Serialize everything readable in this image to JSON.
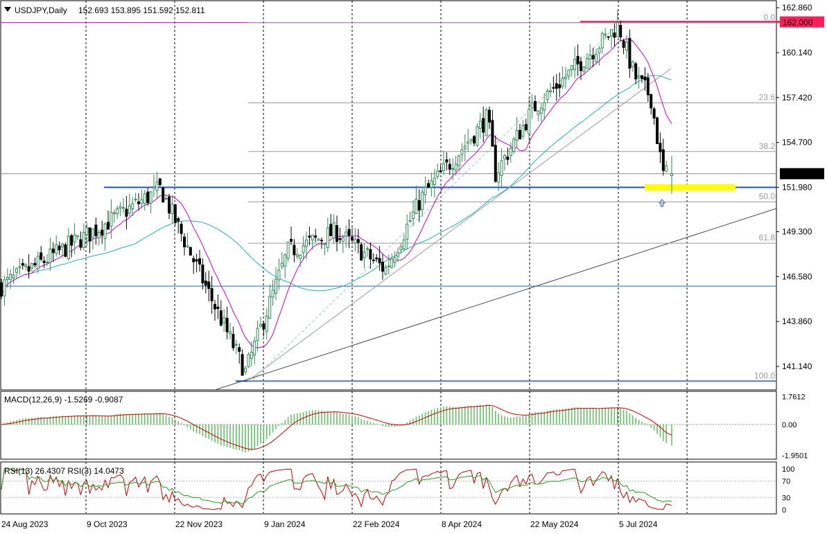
{
  "colors": {
    "background": "#ffffff",
    "bull_candle": "#2e8b57",
    "bear_candle": "#000000",
    "sma50": "#cc00cc",
    "sma200": "#20b2aa",
    "support_line": "#1f4fd1",
    "resistance_line": "#ff1f5a",
    "highlight_zone": "#ffff00",
    "macd_hist": "#5cbf5c",
    "macd_signal": "#cc0000",
    "rsi13": "#cc0000",
    "rsi3": "#20a020",
    "fib_text": "#9a9a9a",
    "grid": "#000000"
  },
  "header": {
    "symbol_label": "USDJPY,Daily",
    "ohlc": "152.693 153.895 151.592 152.811"
  },
  "chart_data": [
    {
      "type": "candlestick",
      "title": "USDJPY,Daily",
      "ohlc_last": {
        "open": 152.693,
        "high": 153.895,
        "low": 151.592,
        "close": 152.811
      },
      "ylim": [
        139.8,
        163.2
      ],
      "y_ticks": [
        162.86,
        160.14,
        157.42,
        154.7,
        151.98,
        149.3,
        146.58,
        143.86,
        141.14
      ],
      "y_tick_labels": [
        "162.860",
        "160.140",
        "157.420",
        "154.700",
        "151.980",
        "149.300",
        "146.580",
        "143.860",
        "141.140"
      ],
      "x_tick_labels": [
        "24 Aug 2023",
        "9 Oct 2023",
        "22 Nov 2023",
        "9 Jan 2024",
        "22 Feb 2024",
        "8 Apr 2024",
        "22 May 2024",
        "5 Jul 2024"
      ],
      "current_price_label": "152.811",
      "resistance_label": "162.000",
      "key_points": [
        {
          "date": "24 Aug 2023",
          "close": 146.0
        },
        {
          "date": "9 Oct 2023",
          "close": 149.2
        },
        {
          "date": "13 Nov 2023",
          "close": 151.9
        },
        {
          "date": "22 Nov 2023",
          "close": 149.5
        },
        {
          "date": "28 Dec 2023",
          "close": 140.8
        },
        {
          "date": "19 Jan 2024",
          "close": 148.1
        },
        {
          "date": "12 Feb 2024",
          "close": 149.3
        },
        {
          "date": "8 Mar 2024",
          "close": 147.0
        },
        {
          "date": "27 Mar 2024",
          "close": 151.4
        },
        {
          "date": "29 Apr 2024",
          "close": 156.2
        },
        {
          "date": "3 May 2024",
          "close": 152.8
        },
        {
          "date": "22 May 2024",
          "close": 156.8
        },
        {
          "date": "3 Jul 2024",
          "close": 161.8
        },
        {
          "date": "11 Jul 2024",
          "close": 158.7
        },
        {
          "date": "19 Jul 2024",
          "close": 157.5
        },
        {
          "date": "25 Jul 2024",
          "close": 152.8
        }
      ],
      "horizontal_lines": [
        162.0,
        151.98,
        146.0,
        140.25
      ],
      "fibonacci_levels": [
        {
          "label": "0.0",
          "price": 161.95
        },
        {
          "label": "23.6",
          "price": 157.1
        },
        {
          "label": "38.2",
          "price": 154.15
        },
        {
          "label": "50.0",
          "price": 151.1
        },
        {
          "label": "61.8",
          "price": 148.6
        },
        {
          "label": "100.0",
          "price": 140.25
        }
      ],
      "moving_averages": [
        "SMA 50 (magenta)",
        "SMA 200 (teal)"
      ],
      "grid": "vertical dashed"
    },
    {
      "type": "area",
      "title": "MACD(12,26,9) -1.5269 -0.9087",
      "indicator": "MACD",
      "params": [
        12,
        26,
        9
      ],
      "macd": -1.5269,
      "signal": -0.9087,
      "ylim": [
        -2.1,
        2.0
      ],
      "y_tick_labels": [
        "1.7612",
        "0.00",
        "-1.9501"
      ]
    },
    {
      "type": "line",
      "title": "RSI(13) 26.4307  RSI(3) 14.0473",
      "indicator": "RSI",
      "series": [
        {
          "name": "RSI(13)",
          "last": 26.4307
        },
        {
          "name": "RSI(3)",
          "last": 14.0473
        }
      ],
      "ylim": [
        0,
        100
      ],
      "y_tick_labels": [
        "100",
        "70",
        "30",
        "0"
      ]
    }
  ]
}
